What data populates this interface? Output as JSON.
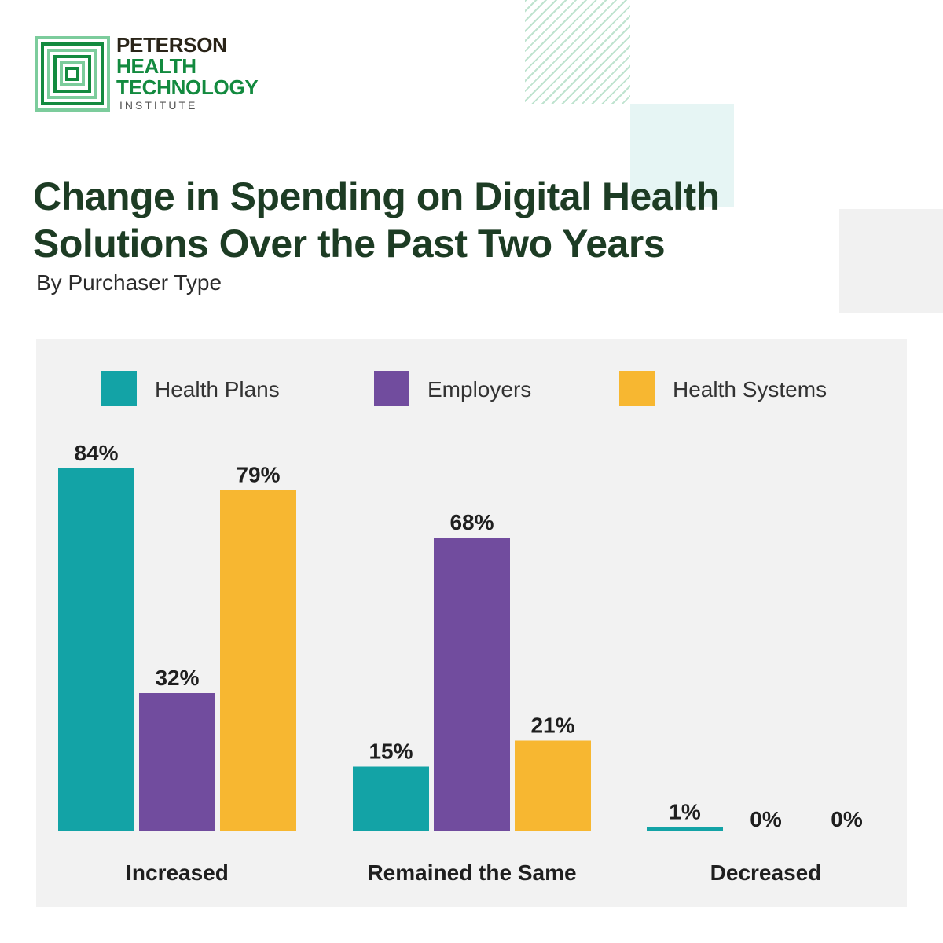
{
  "logo": {
    "line1": "PETERSON",
    "line2": "HEALTH",
    "line3": "TECHNOLOGY",
    "line4": "INSTITUTE",
    "colors": {
      "dark_green": "#138a3f",
      "light_green": "#7ccc9c"
    }
  },
  "title": "Change in Spending on Digital Health Solutions Over the Past Two Years",
  "subtitle": "By Purchaser Type",
  "chart_data": {
    "type": "bar",
    "title": "Change in Spending on Digital Health Solutions Over the Past Two Years",
    "subtitle": "By Purchaser Type",
    "categories": [
      "Increased",
      "Remained the Same",
      "Decreased"
    ],
    "series": [
      {
        "name": "Health Plans",
        "color": "#13a3a6",
        "values": [
          84,
          15,
          1
        ]
      },
      {
        "name": "Employers",
        "color": "#714c9e",
        "values": [
          32,
          68,
          0
        ]
      },
      {
        "name": "Health Systems",
        "color": "#f7b731",
        "values": [
          79,
          21,
          0
        ]
      }
    ],
    "value_labels": [
      [
        "84%",
        "15%",
        "1%"
      ],
      [
        "32%",
        "68%",
        "0%"
      ],
      [
        "79%",
        "21%",
        "0%"
      ]
    ],
    "unit": "%",
    "ylim": [
      0,
      100
    ],
    "grid": false,
    "legend_position": "top"
  }
}
